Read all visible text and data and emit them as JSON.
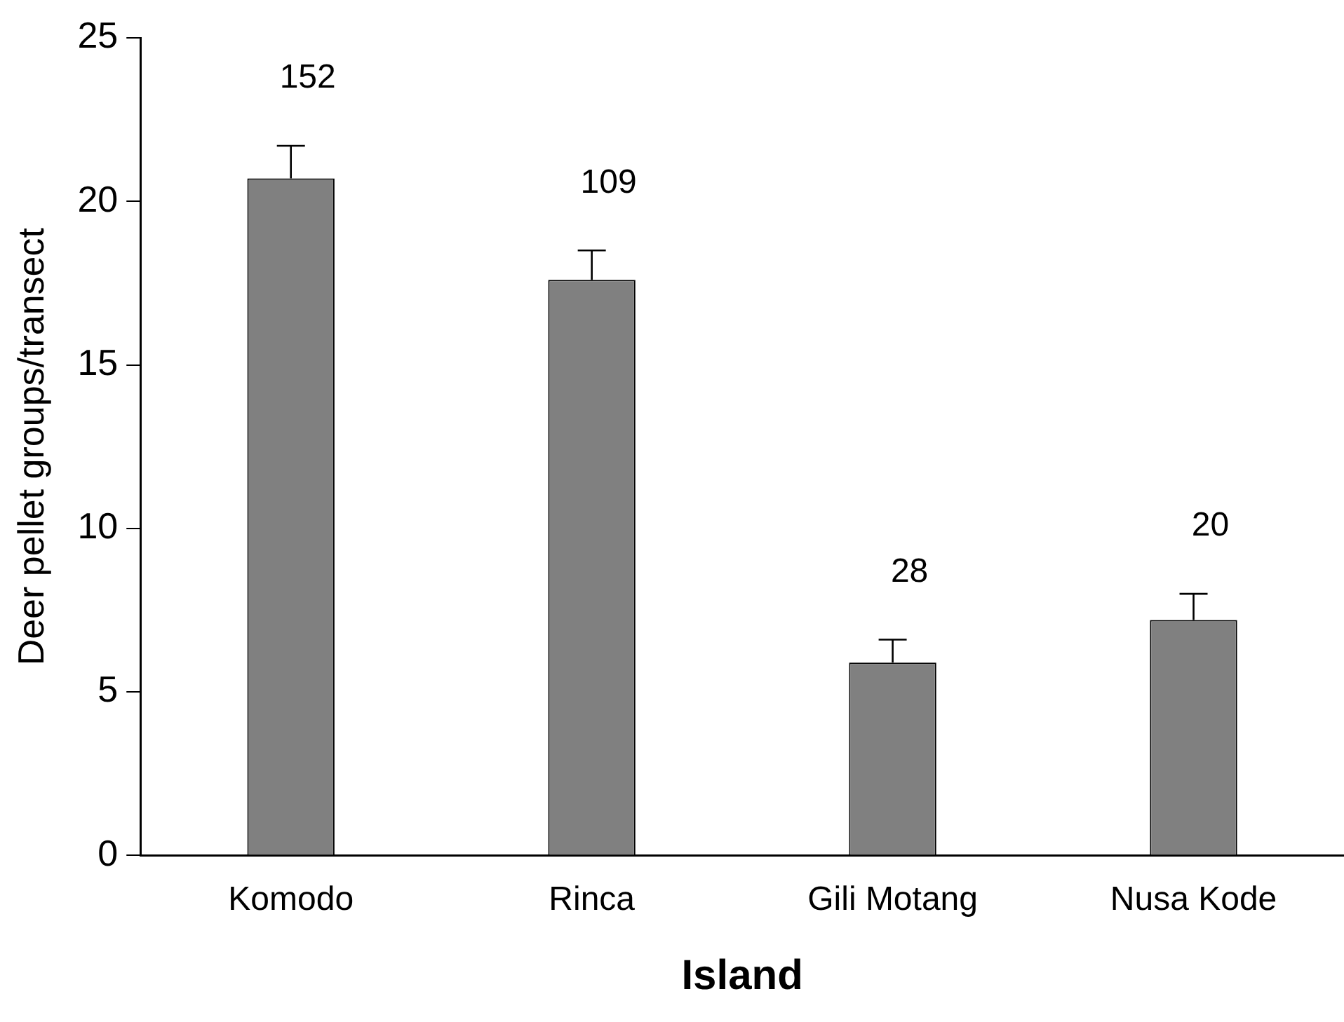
{
  "chart_data": {
    "type": "bar",
    "xlabel": "Island",
    "ylabel": "Deer pellet groups/transect",
    "categories": [
      "Komodo",
      "Rinca",
      "Gili Motang",
      "Nusa Kode"
    ],
    "values": [
      20.7,
      17.6,
      5.9,
      7.2
    ],
    "errors": [
      [
        20.7,
        21.7
      ],
      [
        17.6,
        18.5
      ],
      [
        5.9,
        6.6
      ],
      [
        7.2,
        8.0
      ]
    ],
    "color": "#808080",
    "ylim": [
      0,
      25
    ],
    "yticks": [
      0,
      5,
      10,
      15,
      20,
      25
    ],
    "grid": false,
    "legend": false,
    "annotations": [
      "152",
      "109",
      "28",
      "20"
    ]
  }
}
